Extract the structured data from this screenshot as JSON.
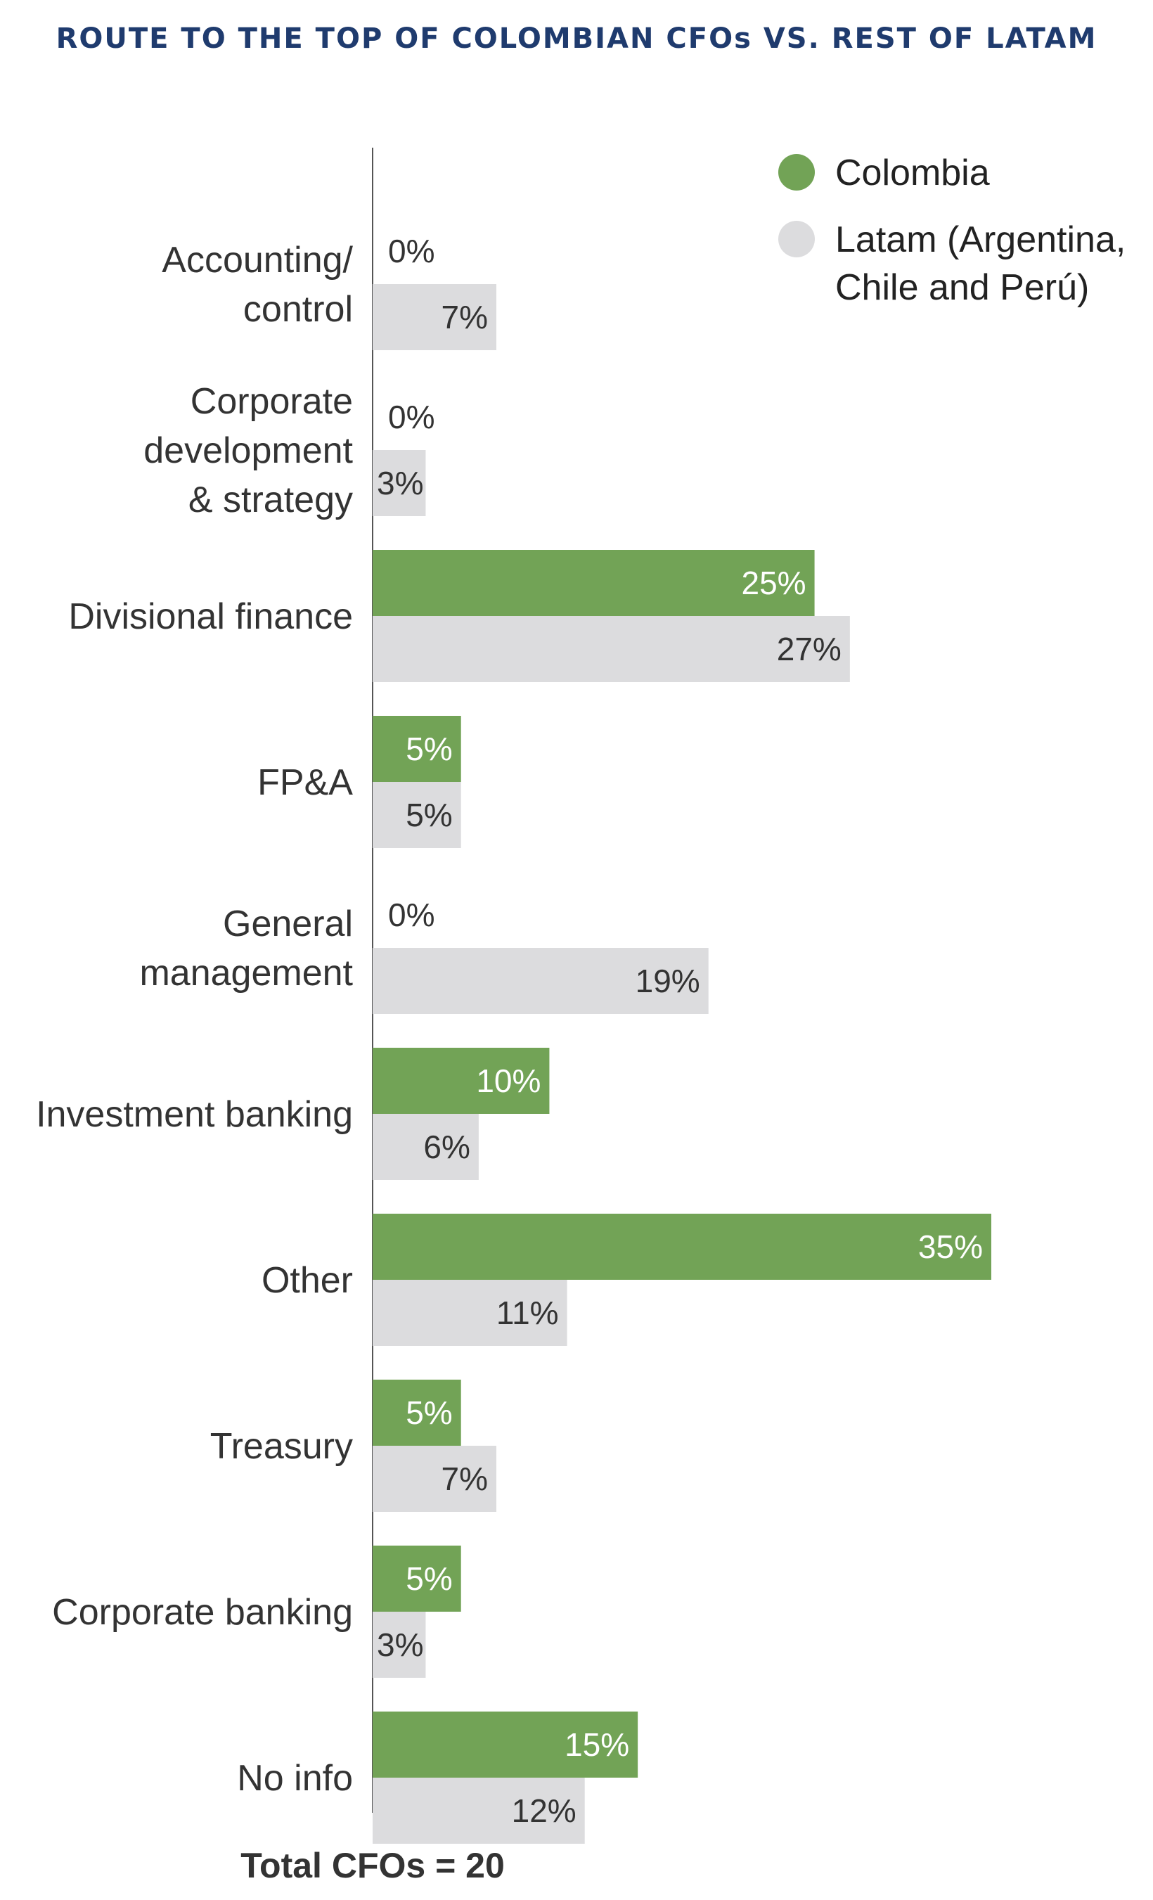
{
  "chart_data": {
    "type": "bar",
    "orientation": "horizontal",
    "title": "ROUTE TO THE TOP OF COLOMBIAN CFOs VS. REST OF LATAM",
    "categories": [
      [
        "Accounting/",
        "control"
      ],
      [
        "Corporate",
        "development",
        "& strategy"
      ],
      [
        "Divisional finance"
      ],
      [
        "FP&A"
      ],
      [
        "General",
        "management"
      ],
      [
        "Investment banking"
      ],
      [
        "Other"
      ],
      [
        "Treasury"
      ],
      [
        "Corporate banking"
      ],
      [
        "No info"
      ]
    ],
    "series": [
      {
        "name": "Colombia",
        "color": "#72a356",
        "values": [
          0,
          0,
          25,
          5,
          0,
          10,
          35,
          5,
          5,
          15
        ],
        "labels": [
          "0%",
          "0%",
          "25%",
          "5%",
          "0%",
          "10%",
          "35%",
          "5%",
          "5%",
          "15%"
        ]
      },
      {
        "name_lines": [
          "Latam (Argentina,",
          "Chile and Perú)"
        ],
        "color": "#dcdcde",
        "values": [
          7,
          3,
          27,
          5,
          19,
          6,
          11,
          7,
          3,
          12
        ],
        "labels": [
          "7%",
          "3%",
          "27%",
          "5%",
          "19%",
          "6%",
          "11%",
          "7%",
          "3%",
          "12%"
        ]
      }
    ],
    "xlim": [
      0,
      35
    ],
    "grid": false,
    "legend_position": "top-right",
    "footer": "Total CFOs = 20"
  }
}
